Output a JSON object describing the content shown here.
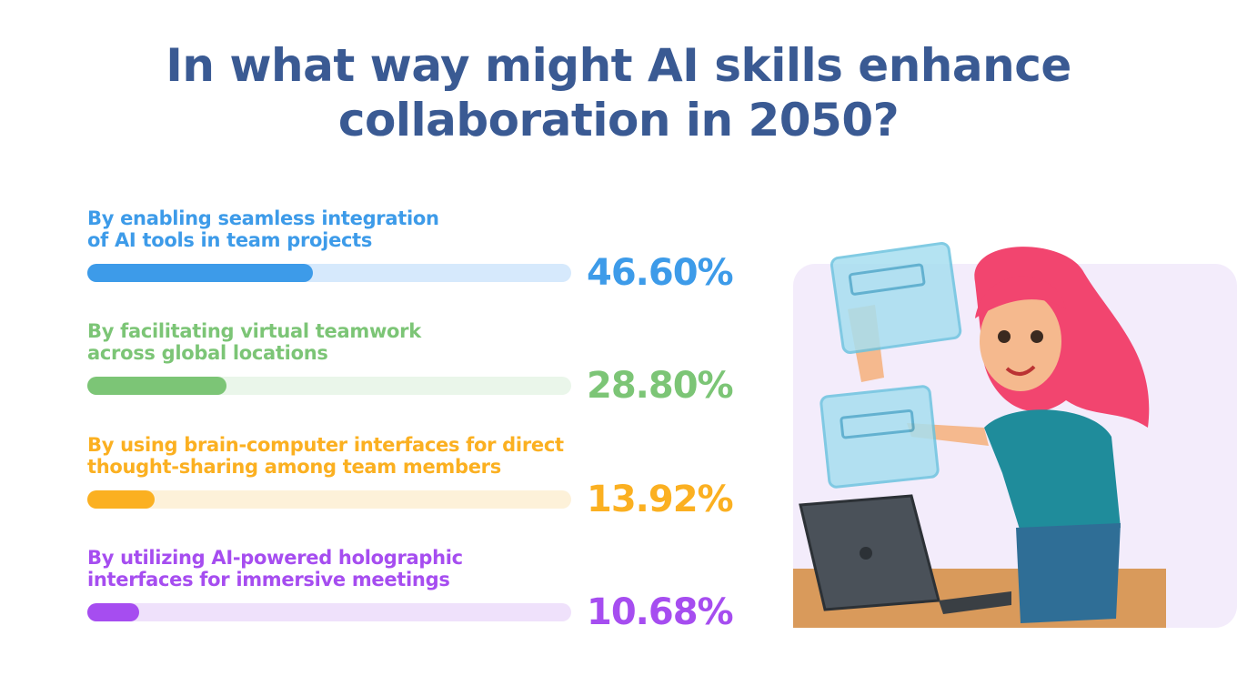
{
  "title": "In what way might AI skills enhance collaboration in 2050?",
  "chart_data": {
    "type": "bar",
    "orientation": "horizontal",
    "title": "In what way might AI skills enhance collaboration in 2050?",
    "xlim": [
      0,
      100
    ],
    "categories": [
      "By enabling seamless integration of AI tools in team projects",
      "By facilitating virtual teamwork across global locations",
      "By using brain-computer interfaces for direct thought-sharing among team members",
      "By utilizing AI-powered holographic interfaces for immersive meetings"
    ],
    "values": [
      46.6,
      28.8,
      13.92,
      10.68
    ],
    "items": [
      {
        "line1": "By enabling seamless integration",
        "line2": "of AI tools in team projects",
        "value": 46.6,
        "label": "46.60%",
        "color": "#3d9be9",
        "track": "#d6e9fc"
      },
      {
        "line1": "By facilitating virtual teamwork",
        "line2": "across global locations",
        "value": 28.8,
        "label": "28.80%",
        "color": "#7cc576",
        "track": "#eaf6ea"
      },
      {
        "line1": "By using brain-computer interfaces for direct",
        "line2": "thought-sharing among team members",
        "value": 13.92,
        "label": "13.92%",
        "color": "#fbb021",
        "track": "#fdf1d9"
      },
      {
        "line1": "By utilizing AI-powered holographic",
        "line2": "interfaces for immersive meetings",
        "value": 10.68,
        "label": "10.68%",
        "color": "#a64df0",
        "track": "#efe1fb"
      }
    ],
    "grid": false,
    "legend": "none"
  }
}
